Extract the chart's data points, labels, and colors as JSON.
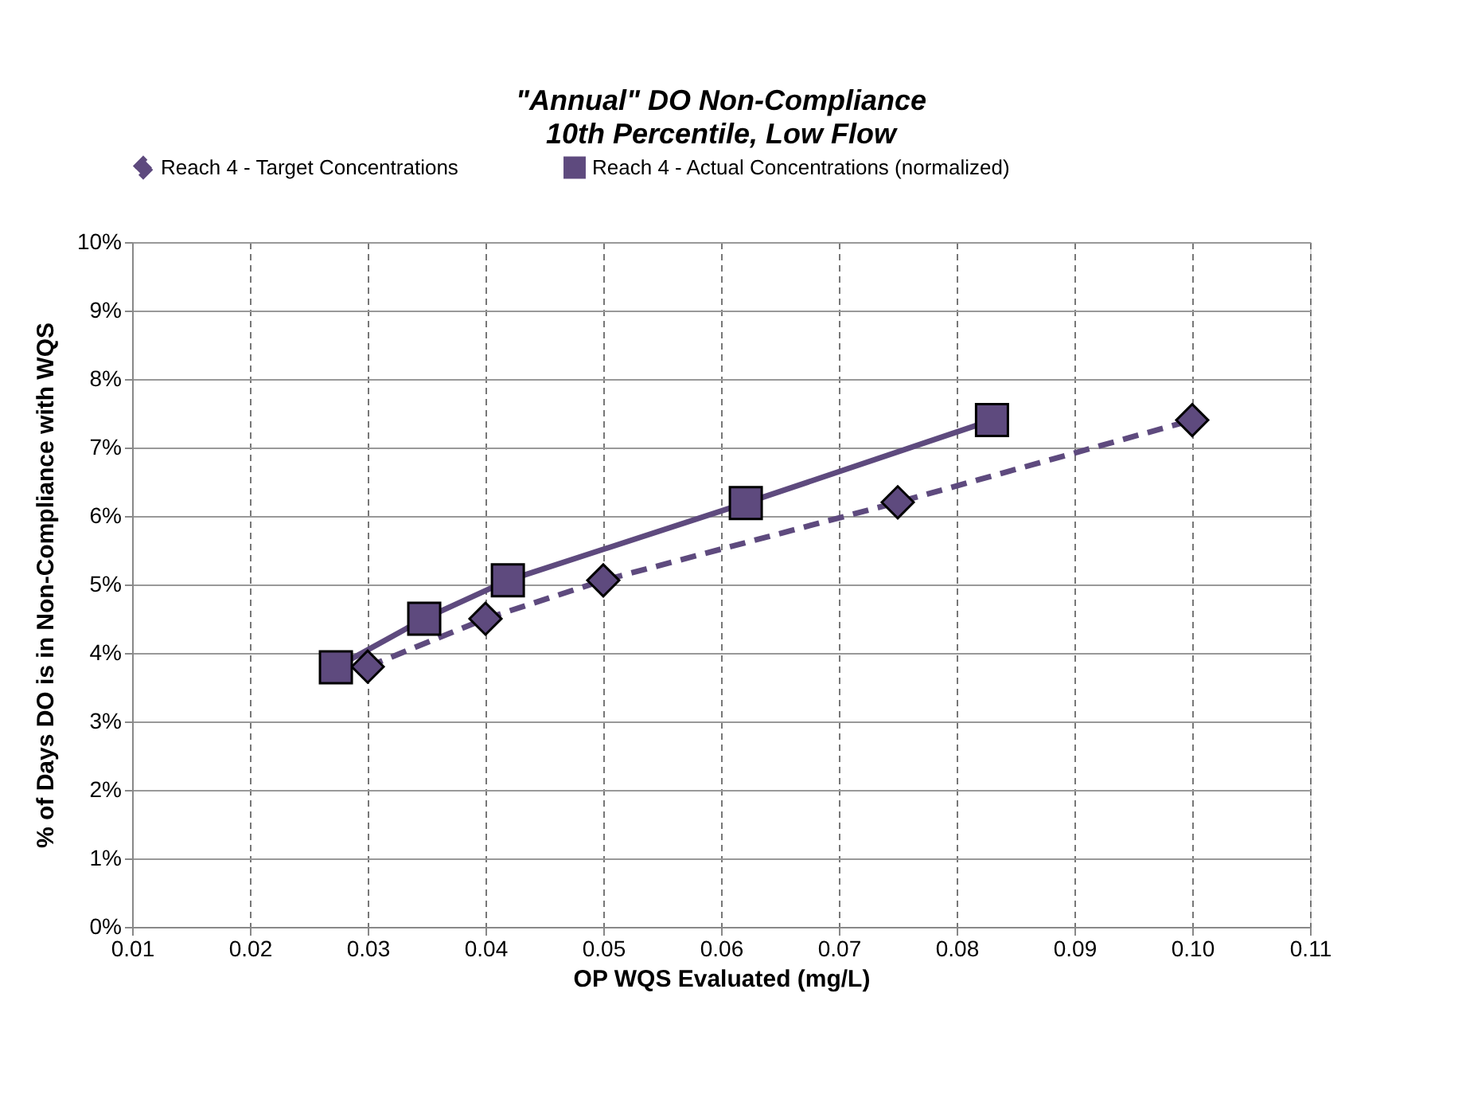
{
  "chart_data": {
    "type": "line",
    "title": "\"Annual\" DO Non-Compliance",
    "subtitle": "10th Percentile, Low Flow",
    "xlabel": "OP WQS Evaluated (mg/L)",
    "ylabel": "% of Days DO is in Non-Compliance with WQS",
    "series": [
      {
        "name": "Reach 4 - Target Concentrations",
        "color": "#5e4a7e",
        "marker": "diamond",
        "line_style": "dashed",
        "x": [
          0.03,
          0.04,
          0.05,
          0.075,
          0.1
        ],
        "values": [
          3.8,
          4.5,
          5.06,
          6.2,
          7.4
        ]
      },
      {
        "name": "Reach 4 - Actual Concentrations (normalized)",
        "color": "#5e4a7e",
        "marker": "square",
        "line_style": "solid",
        "x": [
          0.0273,
          0.0348,
          0.0419,
          0.0621,
          0.083
        ],
        "values": [
          3.79,
          4.5,
          5.06,
          6.19,
          7.4
        ]
      }
    ],
    "xlim": [
      0.01,
      0.11
    ],
    "xticks": [
      {
        "value": 0.01,
        "label": "0.01"
      },
      {
        "value": 0.02,
        "label": "0.02"
      },
      {
        "value": 0.03,
        "label": "0.03"
      },
      {
        "value": 0.04,
        "label": "0.04"
      },
      {
        "value": 0.05,
        "label": "0.05"
      },
      {
        "value": 0.06,
        "label": "0.06"
      },
      {
        "value": 0.07,
        "label": "0.07"
      },
      {
        "value": 0.08,
        "label": "0.08"
      },
      {
        "value": 0.09,
        "label": "0.09"
      },
      {
        "value": 0.1,
        "label": "0.10"
      },
      {
        "value": 0.11,
        "label": "0.11"
      }
    ],
    "ylim": [
      0,
      10
    ],
    "yticks": [
      {
        "value": 0,
        "label": "0%"
      },
      {
        "value": 1,
        "label": "1%"
      },
      {
        "value": 2,
        "label": "2%"
      },
      {
        "value": 3,
        "label": "3%"
      },
      {
        "value": 4,
        "label": "4%"
      },
      {
        "value": 5,
        "label": "5%"
      },
      {
        "value": 6,
        "label": "6%"
      },
      {
        "value": 7,
        "label": "7%"
      },
      {
        "value": 8,
        "label": "8%"
      },
      {
        "value": 9,
        "label": "9%"
      },
      {
        "value": 10,
        "label": "10%"
      }
    ],
    "grid": true,
    "legend": "top"
  }
}
